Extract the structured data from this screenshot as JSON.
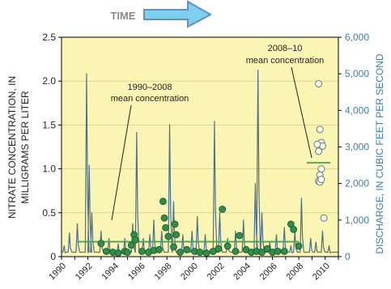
{
  "header": {
    "time_label": "TIME"
  },
  "chart_data": {
    "type": "line",
    "x_ticks": [
      "1990",
      "1992",
      "1994",
      "1996",
      "1998",
      "2000",
      "2002",
      "2004",
      "2006",
      "2008",
      "2010"
    ],
    "xlim": [
      1990,
      2011
    ],
    "ylabel_left": "NITRATE CONCENTRATION, IN MILLIGRAMS PER LITER",
    "ylabel_left_lines": [
      "NITRATE CONCENTRATION, IN",
      "MILLIGRAMS PER LITER"
    ],
    "ylabel_right": "DISCHARGE, IN CUBIC FEET PER SECOND",
    "ylim_left": [
      0,
      2.5
    ],
    "ylim_right": [
      0,
      6000
    ],
    "y_ticks_left": [
      "0",
      "0.5",
      "1.0",
      "1.5",
      "2.0",
      "2.5"
    ],
    "y_ticks_right": [
      "0",
      "1,000",
      "2,000",
      "3,000",
      "4,000",
      "5,000",
      "6,000"
    ],
    "annotations": [
      {
        "lines": [
          "1990–2008",
          "mean concentration"
        ],
        "target": "mean_1990_2008"
      },
      {
        "lines": [
          "2008–10",
          "mean concentration"
        ],
        "target": "mean_2008_2010"
      }
    ],
    "mean_lines": [
      {
        "x0": 1991.2,
        "x1": 2008.0,
        "value": 0.17
      },
      {
        "x0": 2008.6,
        "x1": 2010.4,
        "value": 1.07
      }
    ],
    "discharge_peaks": [
      [
        1990.2,
        300
      ],
      [
        1990.6,
        650
      ],
      [
        1991.2,
        900
      ],
      [
        1991.9,
        5000
      ],
      [
        1992.1,
        2500
      ],
      [
        1992.3,
        1200
      ],
      [
        1993.0,
        700
      ],
      [
        1993.6,
        500
      ],
      [
        1994.3,
        350
      ],
      [
        1994.8,
        500
      ],
      [
        1995.4,
        900
      ],
      [
        1995.7,
        3400
      ],
      [
        1996.2,
        500
      ],
      [
        1996.7,
        600
      ],
      [
        1997.0,
        1000
      ],
      [
        1997.6,
        700
      ],
      [
        1998.2,
        3600
      ],
      [
        1998.5,
        1500
      ],
      [
        1999.2,
        600
      ],
      [
        1999.9,
        700
      ],
      [
        2000.3,
        1100
      ],
      [
        2000.9,
        600
      ],
      [
        2001.6,
        3700
      ],
      [
        2002.0,
        1200
      ],
      [
        2002.6,
        500
      ],
      [
        2003.2,
        700
      ],
      [
        2003.8,
        1000
      ],
      [
        2004.7,
        2000
      ],
      [
        2004.9,
        5100
      ],
      [
        2005.2,
        1200
      ],
      [
        2005.8,
        400
      ],
      [
        2006.3,
        600
      ],
      [
        2006.9,
        800
      ],
      [
        2007.4,
        300
      ],
      [
        2007.7,
        700
      ],
      [
        2008.2,
        1600
      ],
      [
        2008.9,
        500
      ],
      [
        2009.3,
        400
      ],
      [
        2009.8,
        700
      ],
      [
        2010.3,
        300
      ]
    ],
    "nitrate_samples_1990_2008": [
      [
        1993.0,
        0.15
      ],
      [
        1993.4,
        0.06
      ],
      [
        1993.9,
        0.05
      ],
      [
        1994.3,
        0.04
      ],
      [
        1994.8,
        0.06
      ],
      [
        1995.0,
        0.05
      ],
      [
        1995.3,
        0.13
      ],
      [
        1995.5,
        0.25
      ],
      [
        1995.6,
        0.19
      ],
      [
        1996.1,
        0.06
      ],
      [
        1996.6,
        0.05
      ],
      [
        1997.0,
        0.07
      ],
      [
        1997.4,
        0.08
      ],
      [
        1997.7,
        0.63
      ],
      [
        1997.8,
        0.44
      ],
      [
        1997.9,
        0.33
      ],
      [
        1998.1,
        0.23
      ],
      [
        1998.5,
        0.11
      ],
      [
        1998.6,
        0.37
      ],
      [
        1998.7,
        0.25
      ],
      [
        1999.0,
        0.05
      ],
      [
        1999.5,
        0.08
      ],
      [
        2000.1,
        0.06
      ],
      [
        2000.5,
        0.05
      ],
      [
        2001.0,
        0.04
      ],
      [
        2001.5,
        0.06
      ],
      [
        2001.9,
        0.09
      ],
      [
        2002.2,
        0.54
      ],
      [
        2002.6,
        0.12
      ],
      [
        2003.2,
        0.06
      ],
      [
        2003.5,
        0.24
      ],
      [
        2004.0,
        0.08
      ],
      [
        2004.4,
        0.05
      ],
      [
        2004.8,
        0.06
      ],
      [
        2005.2,
        0.05
      ],
      [
        2005.6,
        0.09
      ],
      [
        2006.0,
        0.05
      ],
      [
        2006.4,
        0.06
      ],
      [
        2006.9,
        0.06
      ],
      [
        2007.4,
        0.37
      ],
      [
        2007.6,
        0.31
      ],
      [
        2008.0,
        0.12
      ]
    ],
    "nitrate_samples_2008_2010": [
      [
        2009.5,
        1.97
      ],
      [
        2009.6,
        1.45
      ],
      [
        2009.7,
        1.3
      ],
      [
        2009.8,
        1.26
      ],
      [
        2009.5,
        1.2
      ],
      [
        2009.4,
        1.28
      ],
      [
        2009.7,
        1.0
      ],
      [
        2009.6,
        0.93
      ],
      [
        2009.5,
        0.86
      ],
      [
        2009.6,
        0.85
      ],
      [
        2009.7,
        0.88
      ],
      [
        2009.9,
        0.44
      ]
    ],
    "colors": {
      "plot_background": "#fbf5b3",
      "discharge_line": "#4a7090",
      "samples_early_fill": "#2f8f4a",
      "samples_early_stroke": "#1a4f2a",
      "samples_late_fill": "#ffffff",
      "samples_late_stroke": "#5b7f6a",
      "mean_line": "#4f9f4f",
      "right_axis_text": "#3b7cb5",
      "arrow_fill": "#7fd0ee",
      "arrow_stroke": "#5a92c9",
      "time_text": "#8a8a8a"
    }
  }
}
